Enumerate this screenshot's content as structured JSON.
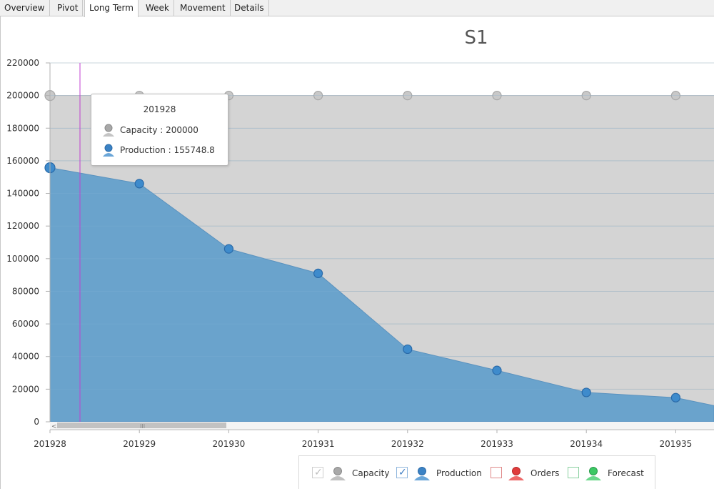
{
  "tabs": [
    {
      "label": "Overview"
    },
    {
      "label": "Pivot"
    },
    {
      "label": "Long Term",
      "active": true
    },
    {
      "label": "Week"
    },
    {
      "label": "Movement"
    },
    {
      "label": "Details"
    }
  ],
  "chart_data": {
    "type": "area",
    "title": "S1",
    "x": [
      "201928",
      "201929",
      "201930",
      "201931",
      "201932",
      "201933",
      "201934",
      "201935"
    ],
    "yticks": [
      "0",
      "20000",
      "40000",
      "60000",
      "80000",
      "100000",
      "120000",
      "140000",
      "160000",
      "180000",
      "200000",
      "220000"
    ],
    "ylim": [
      0,
      220000
    ],
    "grid": true,
    "series": [
      {
        "name": "Capacity",
        "color": "#c8c8c8",
        "values": [
          200000,
          200000,
          200000,
          200000,
          200000,
          200000,
          200000,
          200000
        ]
      },
      {
        "name": "Production",
        "color": "#5c9cc8",
        "values": [
          155748.8,
          146000,
          106000,
          91000,
          44500,
          31500,
          18000,
          14800
        ]
      }
    ],
    "legend": {
      "position": "bottom",
      "items": [
        {
          "name": "Capacity",
          "checked": true,
          "enabled": false,
          "color": "#a8a8a8",
          "icon": "person-marker-icon"
        },
        {
          "name": "Production",
          "checked": true,
          "enabled": true,
          "color": "#3b82c4",
          "icon": "person-marker-icon"
        },
        {
          "name": "Orders",
          "checked": false,
          "enabled": true,
          "color": "#e03c3c",
          "icon": "person-marker-icon"
        },
        {
          "name": "Forecast",
          "checked": false,
          "enabled": true,
          "color": "#3cc864",
          "icon": "person-marker-icon"
        }
      ]
    },
    "tooltip": {
      "title": "201928",
      "rows": [
        "Capacity : 200000",
        "Production : 155748.8"
      ]
    },
    "crosshair_color": "#c040d0"
  }
}
